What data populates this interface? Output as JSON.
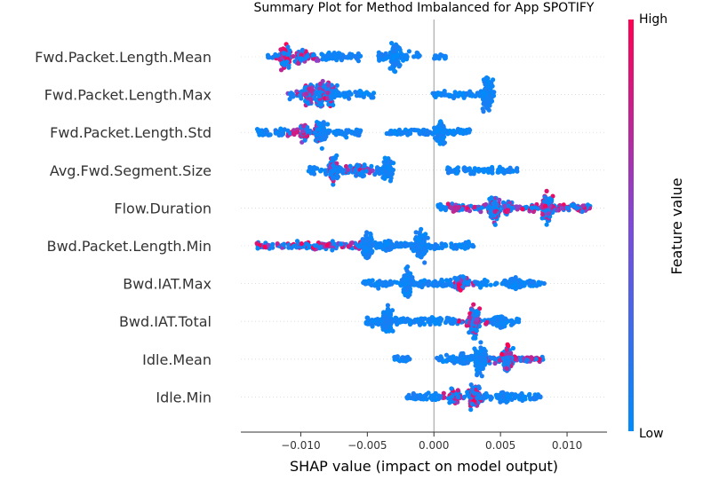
{
  "chart_data": {
    "type": "scatter",
    "title": "Summary Plot for Method Imbalanced for App SPOTIFY",
    "xlabel": "SHAP value (impact on model output)",
    "xlim": [
      -0.0145,
      0.013
    ],
    "xticks": [
      -0.01,
      -0.005,
      0.0,
      0.005,
      0.01
    ],
    "xtick_labels": [
      "−0.010",
      "−0.005",
      "0.000",
      "0.005",
      "0.010"
    ],
    "colorbar": {
      "label": "Feature value",
      "high": "High",
      "low": "Low",
      "low_color": "#008bfb",
      "high_color": "#ff0052"
    },
    "features": [
      {
        "name": "Fwd.Packet.Length.Mean",
        "segments": [
          [
            -0.0125,
            -0.0055,
            0.55
          ],
          [
            -0.0042,
            -0.001,
            0.5
          ],
          [
            0.0,
            0.0009,
            0.25
          ]
        ],
        "clusters": [
          [
            -0.0099,
            0.06
          ],
          [
            -0.0112,
            0.13
          ],
          [
            -0.003,
            0.16
          ]
        ],
        "high_range": [
          -0.0122,
          -0.0085
        ]
      },
      {
        "name": "Fwd.Packet.Length.Max",
        "segments": [
          [
            -0.011,
            -0.0045,
            0.55
          ],
          [
            -0.0001,
            0.0045,
            0.35
          ]
        ],
        "clusters": [
          [
            -0.0094,
            0.12
          ],
          [
            -0.0085,
            0.12
          ],
          [
            -0.0078,
            0.14
          ],
          [
            0.004,
            0.22
          ]
        ],
        "high_range": [
          -0.011,
          -0.0075
        ]
      },
      {
        "name": "Fwd.Packet.Length.Std",
        "segments": [
          [
            -0.0133,
            -0.0055,
            0.55
          ],
          [
            -0.0036,
            0.0027,
            0.4
          ]
        ],
        "clusters": [
          [
            -0.0097,
            0.07
          ],
          [
            -0.0085,
            0.15
          ],
          [
            0.0005,
            0.12
          ]
        ],
        "high_range": [
          -0.012,
          -0.0085
        ]
      },
      {
        "name": "Avg.Fwd.Segment.Size",
        "segments": [
          [
            -0.0095,
            -0.003,
            0.55
          ],
          [
            0.001,
            0.0063,
            0.4
          ]
        ],
        "clusters": [
          [
            -0.0056,
            0.06
          ],
          [
            -0.0075,
            0.14
          ],
          [
            -0.0035,
            0.13
          ]
        ],
        "high_range": [
          -0.008,
          -0.0045
        ]
      },
      {
        "name": "Flow.Duration",
        "segments": [
          [
            0.0002,
            0.0118,
            0.5
          ]
        ],
        "clusters": [
          [
            0.0055,
            0.05
          ],
          [
            0.0045,
            0.15
          ],
          [
            0.0085,
            0.16
          ]
        ],
        "high_range": [
          0.001,
          0.0118
        ]
      },
      {
        "name": "Bwd.Packet.Length.Min",
        "segments": [
          [
            -0.0133,
            0.003,
            0.5
          ]
        ],
        "clusters": [
          [
            -0.0034,
            0.05
          ],
          [
            -0.005,
            0.16
          ],
          [
            -0.001,
            0.18
          ]
        ],
        "high_range": [
          -0.0133,
          -0.0055
        ]
      },
      {
        "name": "Bwd.IAT.Max",
        "segments": [
          [
            -0.0055,
            0.0083,
            0.5
          ]
        ],
        "clusters": [
          [
            0.006,
            0.05
          ],
          [
            0.002,
            0.08
          ],
          [
            -0.002,
            0.18
          ]
        ],
        "high_range": [
          0.0015,
          0.003
        ]
      },
      {
        "name": "Bwd.IAT.Total",
        "segments": [
          [
            -0.0053,
            0.0065,
            0.5
          ]
        ],
        "clusters": [
          [
            0.0051,
            0.05
          ],
          [
            0.003,
            0.18
          ],
          [
            -0.0035,
            0.17
          ]
        ],
        "high_range": [
          0.0015,
          0.004
        ]
      },
      {
        "name": "Idle.Mean",
        "segments": [
          [
            -0.003,
            -0.0018,
            0.15
          ],
          [
            0.0002,
            0.0082,
            0.45
          ]
        ],
        "clusters": [
          [
            0.0023,
            0.05
          ],
          [
            0.0055,
            0.15
          ],
          [
            0.0035,
            0.18
          ]
        ],
        "high_range": [
          0.004,
          0.008
        ]
      },
      {
        "name": "Idle.Min",
        "segments": [
          [
            -0.0022,
            0.008,
            0.5
          ]
        ],
        "clusters": [
          [
            0.0053,
            0.05
          ],
          [
            0.0015,
            0.08
          ],
          [
            0.003,
            0.15
          ]
        ],
        "high_range": [
          0.0005,
          0.0035
        ]
      }
    ]
  }
}
